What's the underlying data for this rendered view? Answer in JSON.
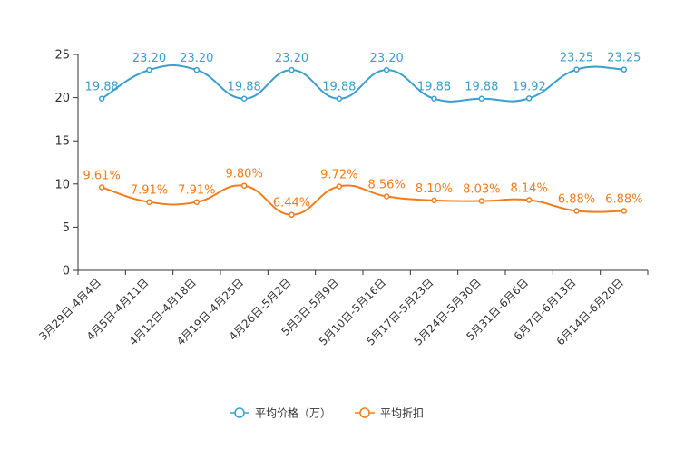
{
  "chart_data": {
    "type": "line",
    "title": "",
    "xlabel": "",
    "ylabel": "",
    "ylim": [
      0,
      25
    ],
    "yticks": [
      0,
      5,
      10,
      15,
      20,
      25
    ],
    "grid": false,
    "legend_position": "bottom-center",
    "categories": [
      "3月29日-4月4日",
      "4月5日-4月11日",
      "4月12日-4月18日",
      "4月19日-4月25日",
      "4月26日-5月2日",
      "5月3日-5月9日",
      "5月10日-5月16日",
      "5月17日-5月23日",
      "5月24日-5月30日",
      "5月31日-6月6日",
      "6月7日-6月13日",
      "6月14日-6月20日"
    ],
    "series": [
      {
        "name": "平均价格（万）",
        "color": "#3a9fcd",
        "values": [
          19.88,
          23.2,
          23.2,
          19.88,
          23.2,
          19.88,
          23.2,
          19.88,
          19.88,
          19.92,
          23.25,
          23.25
        ],
        "labels": [
          "19.88",
          "23.20",
          "23.20",
          "19.88",
          "23.20",
          "19.88",
          "23.20",
          "19.88",
          "19.88",
          "19.92",
          "23.25",
          "23.25"
        ]
      },
      {
        "name": "平均折扣",
        "color": "#f27c1c",
        "values": [
          9.61,
          7.91,
          7.91,
          9.8,
          6.44,
          9.72,
          8.56,
          8.1,
          8.03,
          8.14,
          6.88,
          6.88
        ],
        "labels": [
          "9.61%",
          "7.91%",
          "7.91%",
          "9.80%",
          "6.44%",
          "9.72%",
          "8.56%",
          "8.10%",
          "8.03%",
          "8.14%",
          "6.88%",
          "6.88%"
        ]
      }
    ]
  }
}
